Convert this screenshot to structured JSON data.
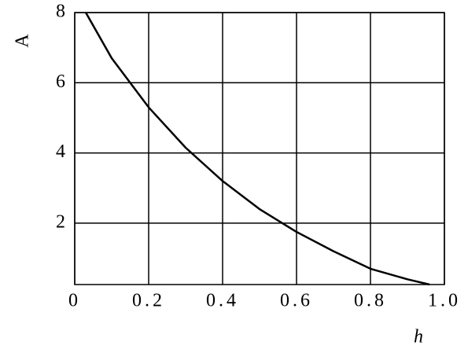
{
  "chart_data": {
    "type": "line",
    "x_label": "h",
    "y_label": "A",
    "x": [
      0.03,
      0.1,
      0.2,
      0.3,
      0.4,
      0.5,
      0.6,
      0.7,
      0.8,
      0.9,
      0.96
    ],
    "series": [
      {
        "name": "A",
        "color": "#000000",
        "values": [
          8,
          6.7,
          5.3,
          4.15,
          3.2,
          2.4,
          1.75,
          1.2,
          0.7,
          0.4,
          0.25
        ]
      }
    ],
    "xlim": [
      0,
      1
    ],
    "ylim": [
      0.25,
      8
    ],
    "xticks": [
      0,
      0.2,
      0.4,
      0.6,
      0.8,
      {
        "value": 1,
        "label": "1.0"
      }
    ],
    "yticks": [
      2,
      4,
      6,
      8
    ],
    "grid": true
  }
}
